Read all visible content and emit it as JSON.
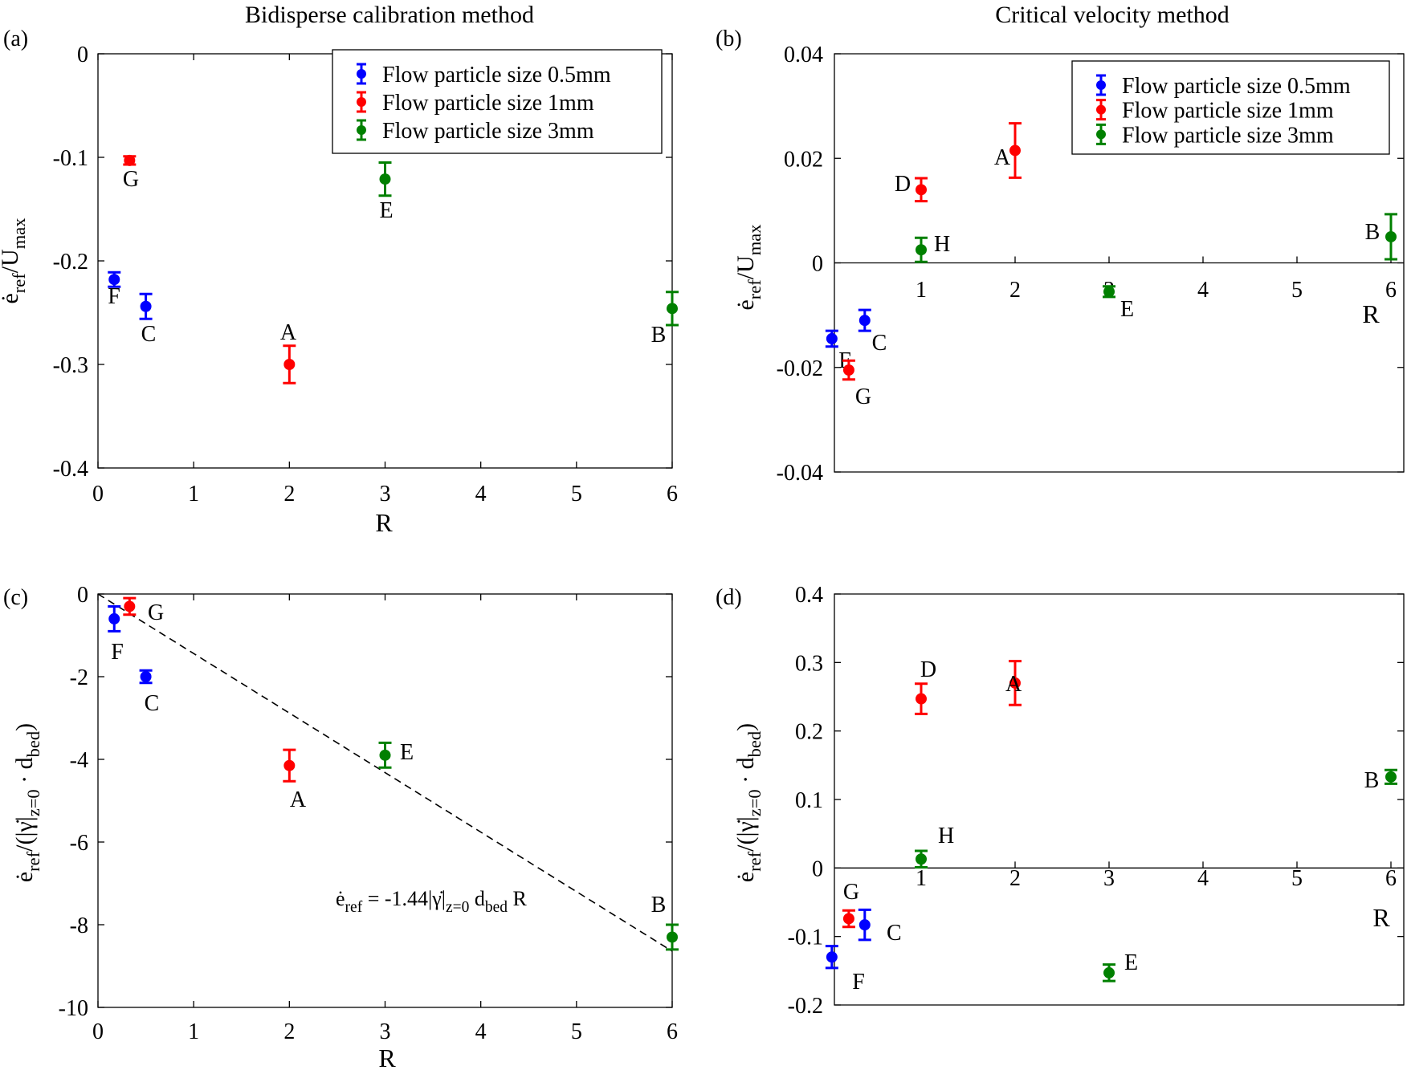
{
  "chart_data": [
    {
      "id": "a",
      "type": "scatter",
      "panel_label": "(a)",
      "title": "Bidisperse calibration method",
      "xlabel": "R",
      "ylabel": "ė_ref/U_max",
      "xlim": [
        0,
        6
      ],
      "ylim": [
        -0.4,
        0
      ],
      "xticks": [
        0,
        1,
        2,
        3,
        4,
        5,
        6
      ],
      "xticklabels": [
        "0",
        "1",
        "2",
        "3",
        "4",
        "5",
        "6"
      ],
      "yticks": [
        0,
        -0.1,
        -0.2,
        -0.3,
        -0.4
      ],
      "yticklabels": [
        "0",
        "-0.1",
        "-0.2",
        "-0.3",
        "-0.4"
      ],
      "legend": [
        "Flow particle size 0.5mm",
        "Flow particle size 1mm",
        "Flow particle size 3mm"
      ],
      "series": [
        {
          "name": "Flow particle size 0.5mm",
          "color": "#0000ff",
          "points": [
            {
              "label": "F",
              "x": 0.17,
              "y": -0.218,
              "err": 0.007
            },
            {
              "label": "C",
              "x": 0.5,
              "y": -0.244,
              "err": 0.012
            }
          ]
        },
        {
          "name": "Flow particle size 1mm",
          "color": "#ff0000",
          "points": [
            {
              "label": "G",
              "x": 0.33,
              "y": -0.103,
              "err": 0.004
            },
            {
              "label": "A",
              "x": 2,
              "y": -0.3,
              "err": 0.018
            }
          ]
        },
        {
          "name": "Flow particle size 3mm",
          "color": "#008000",
          "points": [
            {
              "label": "E",
              "x": 3,
              "y": -0.121,
              "err": 0.016
            },
            {
              "label": "B",
              "x": 6,
              "y": -0.246,
              "err": 0.016
            }
          ]
        }
      ]
    },
    {
      "id": "b",
      "type": "scatter",
      "panel_label": "(b)",
      "title": "Critical velocity method",
      "xlabel": "R",
      "ylabel": "ė_ref/U_max",
      "xlim": [
        0,
        6
      ],
      "ylim": [
        -0.04,
        0.04
      ],
      "xticks": [
        1,
        2,
        3,
        4,
        5,
        6
      ],
      "xticklabels": [
        "1",
        "2",
        "3",
        "4",
        "5",
        "6"
      ],
      "yticks": [
        0.04,
        0.02,
        0,
        -0.02,
        -0.04
      ],
      "yticklabels": [
        "0.04",
        "0.02",
        "0",
        "-0.02",
        "-0.04"
      ],
      "legend": [
        "Flow particle size 0.5mm",
        "Flow particle size 1mm",
        "Flow particle size 3mm"
      ],
      "series": [
        {
          "name": "Flow particle size 0.5mm",
          "color": "#0000ff",
          "points": [
            {
              "label": "F",
              "x": 0.05,
              "y": -0.0145,
              "err": 0.0015
            },
            {
              "label": "C",
              "x": 0.4,
              "y": -0.011,
              "err": 0.002
            }
          ]
        },
        {
          "name": "Flow particle size 1mm",
          "color": "#ff0000",
          "points": [
            {
              "label": "G",
              "x": 0.23,
              "y": -0.0205,
              "err": 0.0018
            },
            {
              "label": "D",
              "x": 1,
              "y": 0.014,
              "err": 0.0022
            },
            {
              "label": "A",
              "x": 2,
              "y": 0.0215,
              "err": 0.0052
            }
          ]
        },
        {
          "name": "Flow particle size 3mm",
          "color": "#008000",
          "points": [
            {
              "label": "H",
              "x": 1,
              "y": 0.0025,
              "err": 0.0023
            },
            {
              "label": "E",
              "x": 3,
              "y": -0.0055,
              "err": 0.001
            },
            {
              "label": "B",
              "x": 6,
              "y": 0.005,
              "err": 0.0043
            }
          ]
        }
      ]
    },
    {
      "id": "c",
      "type": "scatter",
      "panel_label": "(c)",
      "title": "",
      "xlabel": "R",
      "ylabel": "ė_ref/(|γ̇|_z=0 · d_bed)",
      "xlim": [
        0,
        6
      ],
      "ylim": [
        -10,
        0
      ],
      "xticks": [
        0,
        1,
        2,
        3,
        4,
        5,
        6
      ],
      "xticklabels": [
        "0",
        "1",
        "2",
        "3",
        "4",
        "5",
        "6"
      ],
      "yticks": [
        0,
        -2,
        -4,
        -6,
        -8,
        -10
      ],
      "yticklabels": [
        "0",
        "-2",
        "-4",
        "-6",
        "-8",
        "-10"
      ],
      "fit_line": {
        "slope": -1.44,
        "intercept": 0,
        "label": "ė_ref = -1.44|γ̇|_z=0 d_bed R"
      },
      "series": [
        {
          "name": "Flow particle size 0.5mm",
          "color": "#0000ff",
          "points": [
            {
              "label": "F",
              "x": 0.17,
              "y": -0.6,
              "err": 0.3
            },
            {
              "label": "C",
              "x": 0.5,
              "y": -2.0,
              "err": 0.15
            }
          ]
        },
        {
          "name": "Flow particle size 1mm",
          "color": "#ff0000",
          "points": [
            {
              "label": "G",
              "x": 0.33,
              "y": -0.3,
              "err": 0.2
            },
            {
              "label": "A",
              "x": 2,
              "y": -4.15,
              "err": 0.38
            }
          ]
        },
        {
          "name": "Flow particle size 3mm",
          "color": "#008000",
          "points": [
            {
              "label": "E",
              "x": 3,
              "y": -3.9,
              "err": 0.3
            },
            {
              "label": "B",
              "x": 6,
              "y": -8.3,
              "err": 0.3
            }
          ]
        }
      ]
    },
    {
      "id": "d",
      "type": "scatter",
      "panel_label": "(d)",
      "title": "",
      "xlabel": "R",
      "ylabel": "ė_ref/(|γ̇|_z=0 · d_bed)",
      "xlim": [
        0,
        6
      ],
      "ylim": [
        -0.2,
        0.4
      ],
      "xticks": [
        1,
        2,
        3,
        4,
        5,
        6
      ],
      "xticklabels": [
        "1",
        "2",
        "3",
        "4",
        "5",
        "6"
      ],
      "yticks": [
        0.4,
        0.3,
        0.2,
        0.1,
        0,
        -0.1,
        -0.2
      ],
      "yticklabels": [
        "0.4",
        "0.3",
        "0.2",
        "0.1",
        "0",
        "-0.1",
        "-0.2"
      ],
      "series": [
        {
          "name": "Flow particle size 0.5mm",
          "color": "#0000ff",
          "points": [
            {
              "label": "F",
              "x": 0.05,
              "y": -0.13,
              "err": 0.016
            },
            {
              "label": "C",
              "x": 0.4,
              "y": -0.083,
              "err": 0.022
            }
          ]
        },
        {
          "name": "Flow particle size 1mm",
          "color": "#ff0000",
          "points": [
            {
              "label": "G",
              "x": 0.23,
              "y": -0.074,
              "err": 0.012
            },
            {
              "label": "D",
              "x": 1,
              "y": 0.247,
              "err": 0.022
            },
            {
              "label": "A",
              "x": 2,
              "y": 0.27,
              "err": 0.032
            }
          ]
        },
        {
          "name": "Flow particle size 3mm",
          "color": "#008000",
          "points": [
            {
              "label": "H",
              "x": 1,
              "y": 0.013,
              "err": 0.012
            },
            {
              "label": "E",
              "x": 3,
              "y": -0.153,
              "err": 0.012
            },
            {
              "label": "B",
              "x": 6,
              "y": 0.133,
              "err": 0.01
            }
          ]
        }
      ]
    }
  ]
}
